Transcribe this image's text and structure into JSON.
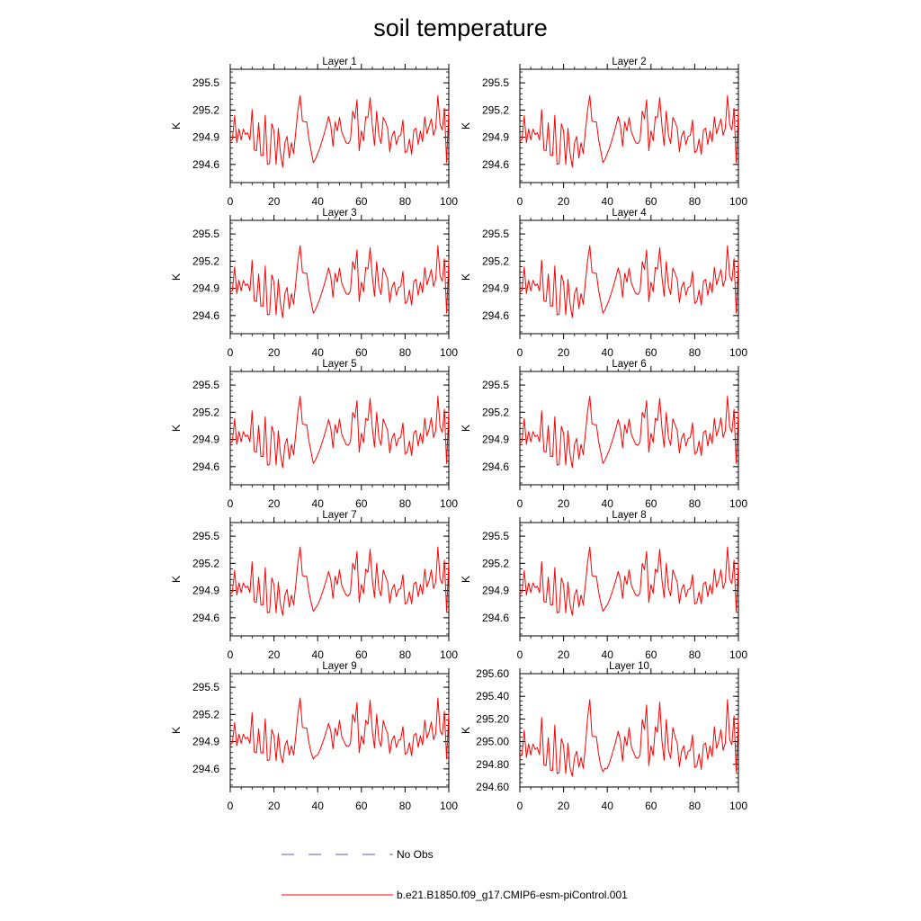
{
  "figure": {
    "title": "soil temperature",
    "legend": [
      {
        "label": "No Obs",
        "color": "#5a5acd",
        "style": "dashed"
      },
      {
        "label": "b.e21.B1850.f09_g17.CMIP6-esm-piControl.001",
        "color": "#ff0000",
        "style": "solid"
      }
    ]
  },
  "chart_data": {
    "type": "line",
    "title": "soil temperature",
    "xlabel": "",
    "ylabel": "K",
    "xlim": [
      0,
      100
    ],
    "x_ticks": [
      0,
      20,
      40,
      60,
      80,
      100
    ],
    "base_series": [
      294.85,
      294.88,
      295.14,
      294.84,
      294.99,
      294.87,
      294.99,
      294.93,
      294.95,
      294.87,
      295.28,
      294.76,
      294.75,
      295.06,
      294.7,
      294.7,
      295.2,
      294.6,
      294.61,
      295.05,
      294.97,
      294.6,
      295.0,
      294.72,
      294.57,
      294.84,
      294.91,
      294.67,
      294.84,
      294.72,
      294.97,
      295.28,
      295.48,
      295.08,
      295.07,
      295.07,
      294.88,
      294.75,
      294.62,
      294.66,
      294.72,
      294.78,
      294.86,
      294.94,
      295.03,
      295.13,
      295.03,
      294.8,
      295.07,
      294.97,
      295.17,
      294.96,
      294.9,
      294.84,
      294.83,
      294.87,
      295.26,
      295.15,
      295.42,
      294.75,
      294.97,
      294.86,
      295.18,
      295.12,
      295.45,
      295.03,
      294.81,
      295.26,
      294.92,
      294.83,
      295.17,
      295.07,
      295.0,
      294.74,
      294.91,
      294.97,
      294.82,
      294.91,
      294.92,
      295.09,
      294.73,
      294.75,
      294.88,
      294.71,
      294.98,
      295.0,
      294.82,
      294.97,
      294.85,
      295.18,
      294.94,
      295.02,
      295.15,
      294.92,
      295.0,
      295.48,
      295.04,
      294.98,
      295.3,
      294.62,
      295.28
    ],
    "panels": [
      {
        "label": "Layer 1",
        "ylim": [
          294.4,
          295.65
        ],
        "ticks": [
          "294.6",
          "294.9",
          "295.2",
          "295.5"
        ],
        "peak_shift": 0.12,
        "trough_shift": 0.0,
        "damp": 1.0
      },
      {
        "label": "Layer 2",
        "ylim": [
          294.4,
          295.65
        ],
        "ticks": [
          "294.6",
          "294.9",
          "295.2",
          "295.5"
        ],
        "peak_shift": 0.12,
        "trough_shift": 0.0,
        "damp": 1.0
      },
      {
        "label": "Layer 3",
        "ylim": [
          294.4,
          295.65
        ],
        "ticks": [
          "294.6",
          "294.9",
          "295.2",
          "295.5"
        ],
        "peak_shift": 0.1,
        "trough_shift": 0.0,
        "damp": 0.98
      },
      {
        "label": "Layer 4",
        "ylim": [
          294.4,
          295.65
        ],
        "ticks": [
          "294.6",
          "294.9",
          "295.2",
          "295.5"
        ],
        "peak_shift": 0.1,
        "trough_shift": 0.0,
        "damp": 0.98
      },
      {
        "label": "Layer 5",
        "ylim": [
          294.4,
          295.65
        ],
        "ticks": [
          "294.6",
          "294.9",
          "295.2",
          "295.5"
        ],
        "peak_shift": 0.08,
        "trough_shift": 0.0,
        "damp": 0.95
      },
      {
        "label": "Layer 6",
        "ylim": [
          294.4,
          295.65
        ],
        "ticks": [
          "294.6",
          "294.9",
          "295.2",
          "295.5"
        ],
        "peak_shift": 0.08,
        "trough_shift": 0.0,
        "damp": 0.95
      },
      {
        "label": "Layer 7",
        "ylim": [
          294.4,
          295.65
        ],
        "ticks": [
          "294.6",
          "294.9",
          "295.2",
          "295.5"
        ],
        "peak_shift": 0.05,
        "trough_shift": 0.02,
        "damp": 0.9
      },
      {
        "label": "Layer 8",
        "ylim": [
          294.4,
          295.65
        ],
        "ticks": [
          "294.6",
          "294.9",
          "295.2",
          "295.5"
        ],
        "peak_shift": 0.05,
        "trough_shift": 0.02,
        "damp": 0.9
      },
      {
        "label": "Layer 9",
        "ylim": [
          294.4,
          295.65
        ],
        "ticks": [
          "294.6",
          "294.9",
          "295.2",
          "295.5"
        ],
        "peak_shift": 0.02,
        "trough_shift": 0.04,
        "damp": 0.85
      },
      {
        "label": "Layer 10",
        "ylim": [
          294.6,
          295.6
        ],
        "ticks": [
          "294.60",
          "294.80",
          "295.00",
          "295.20",
          "295.40",
          "295.60"
        ],
        "peak_shift": 0.0,
        "trough_shift": 0.05,
        "damp": 0.8
      }
    ]
  }
}
